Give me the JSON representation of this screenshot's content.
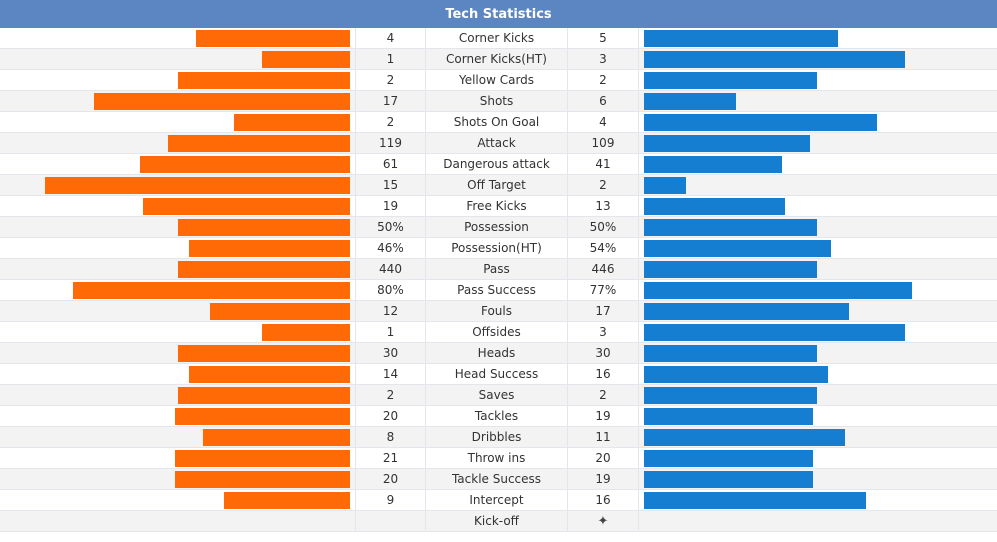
{
  "title": "Tech Statistics",
  "colors": {
    "home_bar": "#ff6a06",
    "away_bar": "#167ed0",
    "header_bg": "#5b86c2"
  },
  "stats": [
    {
      "name": "Corner Kicks",
      "home": "4",
      "away": "5",
      "home_frac": 0.44,
      "away_frac": 0.55
    },
    {
      "name": "Corner Kicks(HT)",
      "home": "1",
      "away": "3",
      "home_frac": 0.25,
      "away_frac": 0.74
    },
    {
      "name": "Yellow Cards",
      "home": "2",
      "away": "2",
      "home_frac": 0.49,
      "away_frac": 0.49
    },
    {
      "name": "Shots",
      "home": "17",
      "away": "6",
      "home_frac": 0.73,
      "away_frac": 0.26
    },
    {
      "name": "Shots On Goal",
      "home": "2",
      "away": "4",
      "home_frac": 0.33,
      "away_frac": 0.66
    },
    {
      "name": "Attack",
      "home": "119",
      "away": "109",
      "home_frac": 0.52,
      "away_frac": 0.47
    },
    {
      "name": "Dangerous attack",
      "home": "61",
      "away": "41",
      "home_frac": 0.6,
      "away_frac": 0.39
    },
    {
      "name": "Off Target",
      "home": "15",
      "away": "2",
      "home_frac": 0.87,
      "away_frac": 0.12
    },
    {
      "name": "Free Kicks",
      "home": "19",
      "away": "13",
      "home_frac": 0.59,
      "away_frac": 0.4
    },
    {
      "name": "Possession",
      "home": "50%",
      "away": "50%",
      "home_frac": 0.49,
      "away_frac": 0.49
    },
    {
      "name": "Possession(HT)",
      "home": "46%",
      "away": "54%",
      "home_frac": 0.46,
      "away_frac": 0.53
    },
    {
      "name": "Pass",
      "home": "440",
      "away": "446",
      "home_frac": 0.49,
      "away_frac": 0.49
    },
    {
      "name": "Pass Success",
      "home": "80%",
      "away": "77%",
      "home_frac": 0.79,
      "away_frac": 0.76
    },
    {
      "name": "Fouls",
      "home": "12",
      "away": "17",
      "home_frac": 0.4,
      "away_frac": 0.58
    },
    {
      "name": "Offsides",
      "home": "1",
      "away": "3",
      "home_frac": 0.25,
      "away_frac": 0.74
    },
    {
      "name": "Heads",
      "home": "30",
      "away": "30",
      "home_frac": 0.49,
      "away_frac": 0.49
    },
    {
      "name": "Head Success",
      "home": "14",
      "away": "16",
      "home_frac": 0.46,
      "away_frac": 0.52
    },
    {
      "name": "Saves",
      "home": "2",
      "away": "2",
      "home_frac": 0.49,
      "away_frac": 0.49
    },
    {
      "name": "Tackles",
      "home": "20",
      "away": "19",
      "home_frac": 0.5,
      "away_frac": 0.48
    },
    {
      "name": "Dribbles",
      "home": "8",
      "away": "11",
      "home_frac": 0.42,
      "away_frac": 0.57
    },
    {
      "name": "Throw ins",
      "home": "21",
      "away": "20",
      "home_frac": 0.5,
      "away_frac": 0.48
    },
    {
      "name": "Tackle Success",
      "home": "20",
      "away": "19",
      "home_frac": 0.5,
      "away_frac": 0.48
    },
    {
      "name": "Intercept",
      "home": "9",
      "away": "16",
      "home_frac": 0.36,
      "away_frac": 0.63
    }
  ],
  "kickoff": {
    "name": "Kick-off",
    "home": "",
    "away_icon": "four-point-star-icon",
    "away_glyph": "✦"
  }
}
